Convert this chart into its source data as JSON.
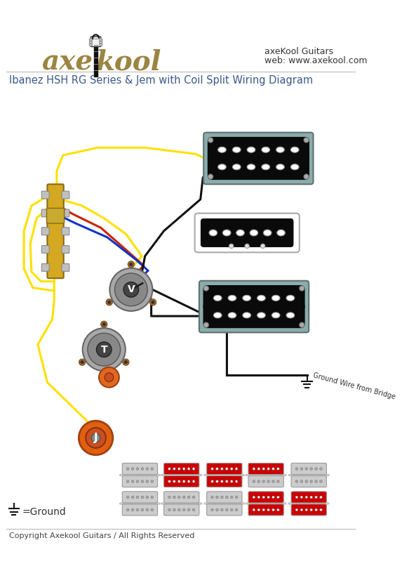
{
  "title": "Ibanez HSH RG Series & Jem with Coil Split Wiring Diagram",
  "copyright": "Copyright Axekool Guitars / All Rights Reserved",
  "brand_line1": "axeKool Guitars",
  "brand_line2": "web: www.axekool.com",
  "ground_label": "=Ground",
  "bg_color": "#ffffff",
  "title_color": "#3a5a8a",
  "text_color": "#333333",
  "brand_color": "#9B8542",
  "wire_yellow": "#FFE000",
  "wire_red": "#CC2200",
  "wire_blue": "#1133CC",
  "wire_black": "#111111",
  "pickup_black": "#111111",
  "pickup_gray_plate": "#8aacac",
  "pickup_white": "#ffffff",
  "pickup_red_fill": "#cc0000",
  "switch_gold": "#D4A820",
  "switch_brown": "#8B6914",
  "pot_outer": "#a8a8a8",
  "pot_mid": "#888888",
  "pot_inner": "#555555",
  "pot_lug": "#b87333",
  "jack_orange": "#E06010",
  "cap_orange": "#E06820",
  "ground_wire_label": "Ground Wire from Bridge",
  "icon_active_color": "#cc0000",
  "icon_inactive_color": "#cccccc",
  "icon_dot_active": "#ffffff",
  "icon_dot_inactive": "#aaaaaa",
  "row1_active": [
    false,
    true,
    true,
    true,
    false
  ],
  "row2_active": [
    false,
    true,
    true,
    false,
    false
  ],
  "row3_active": [
    false,
    false,
    false,
    true,
    true
  ],
  "row4_active": [
    false,
    false,
    false,
    true,
    true
  ]
}
